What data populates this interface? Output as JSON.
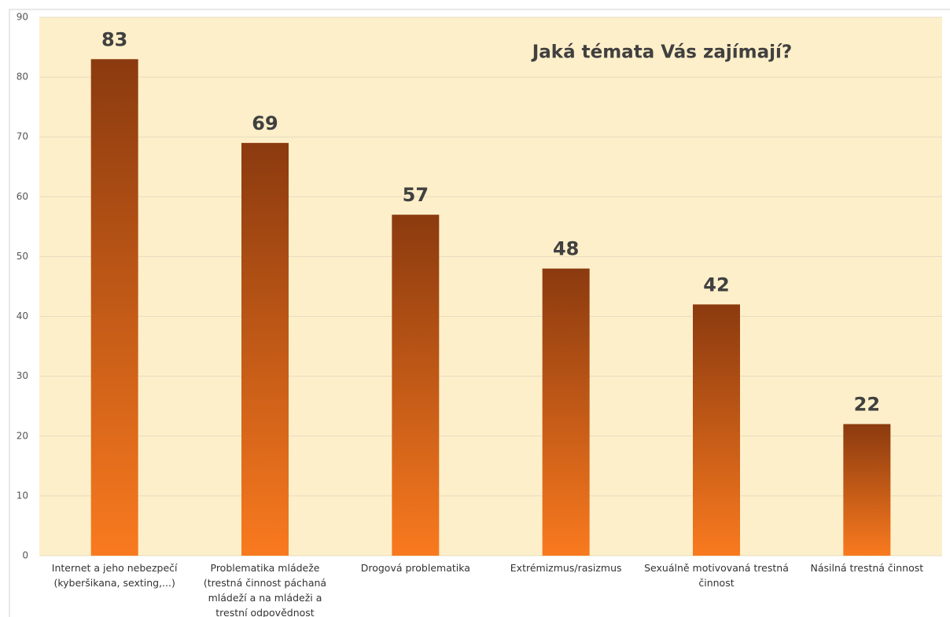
{
  "chart_data": {
    "type": "bar",
    "title": "Jaká témata Vás zajímají?",
    "categories": [
      "Internet a jeho nebezpečí (kyberšikana, sexting,...)",
      "Problematika mládeže (trestná činnost páchaná mládeží a na mládeži a trestní odpovědnost mládeže)",
      "Drogová problematika",
      "Extrémizmus/rasizmus",
      "Sexuálně motivovaná trestná činnost",
      "Násilná trestná činnost"
    ],
    "values": [
      83,
      69,
      57,
      48,
      42,
      22
    ],
    "color": [
      "#8b3a0f",
      "#f97a1f"
    ],
    "ylim": [
      0,
      90
    ],
    "yticks": [
      0,
      10,
      20,
      30,
      40,
      50,
      60,
      70,
      80,
      90
    ],
    "grid": true
  }
}
